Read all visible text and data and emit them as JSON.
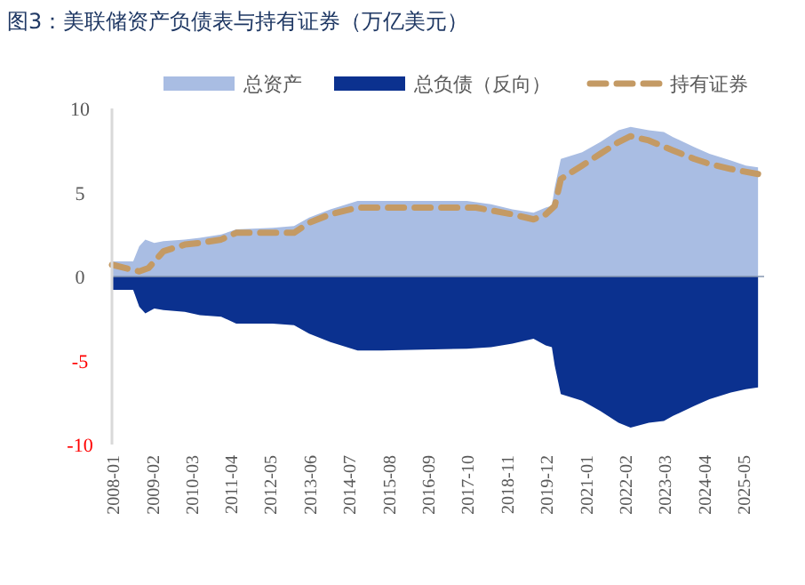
{
  "chart_data": {
    "type": "area",
    "title": "图3：美联储资产负债表与持有证券（万亿美元）",
    "xlim": [
      "2008-01",
      "2025-12"
    ],
    "xticks": [
      "2008-01",
      "2009-02",
      "2010-03",
      "2011-04",
      "2012-05",
      "2013-06",
      "2014-07",
      "2015-08",
      "2016-09",
      "2017-10",
      "2018-11",
      "2019-12",
      "2021-01",
      "2022-02",
      "2023-03",
      "2024-04",
      "2025-05"
    ],
    "ref_lines": [
      {
        "axis": "y",
        "value": 0,
        "color": "#8496b0"
      }
    ],
    "ylim": [
      -10,
      10
    ],
    "yticks": [
      -10,
      -5,
      0,
      5,
      10
    ],
    "grid": false,
    "legend": "top",
    "series": [
      {
        "name": "总资产",
        "color": "#a9bde3",
        "x": [
          "2008-01",
          "2008-08",
          "2008-10",
          "2008-12",
          "2009-03",
          "2009-06",
          "2010-01",
          "2010-06",
          "2011-01",
          "2011-06",
          "2012-06",
          "2013-01",
          "2013-06",
          "2014-01",
          "2014-10",
          "2015-06",
          "2017-10",
          "2018-06",
          "2019-01",
          "2019-08",
          "2019-12",
          "2020-02",
          "2020-03",
          "2020-05",
          "2020-12",
          "2021-06",
          "2021-12",
          "2022-04",
          "2022-10",
          "2023-03",
          "2023-06",
          "2024-01",
          "2024-06",
          "2025-01",
          "2025-06",
          "2025-10"
        ],
        "values": [
          0.9,
          0.9,
          1.8,
          2.2,
          2.0,
          2.1,
          2.2,
          2.3,
          2.5,
          2.8,
          2.9,
          3.0,
          3.5,
          4.0,
          4.5,
          4.5,
          4.5,
          4.3,
          4.0,
          3.8,
          4.1,
          4.2,
          5.3,
          7.0,
          7.4,
          8.0,
          8.7,
          8.9,
          8.7,
          8.6,
          8.3,
          7.7,
          7.3,
          6.9,
          6.6,
          6.5
        ]
      },
      {
        "name": "总负债（反向）",
        "color": "#0b318f",
        "x": [
          "2008-01",
          "2008-08",
          "2008-10",
          "2008-12",
          "2009-03",
          "2009-06",
          "2010-01",
          "2010-06",
          "2011-01",
          "2011-06",
          "2012-06",
          "2013-01",
          "2013-06",
          "2014-01",
          "2014-10",
          "2015-06",
          "2017-10",
          "2018-06",
          "2019-01",
          "2019-08",
          "2019-12",
          "2020-02",
          "2020-03",
          "2020-05",
          "2020-12",
          "2021-06",
          "2021-12",
          "2022-04",
          "2022-10",
          "2023-03",
          "2023-06",
          "2024-01",
          "2024-06",
          "2025-01",
          "2025-06",
          "2025-10"
        ],
        "values": [
          -0.8,
          -0.8,
          -1.8,
          -2.2,
          -1.9,
          -2.0,
          -2.1,
          -2.3,
          -2.4,
          -2.8,
          -2.8,
          -2.9,
          -3.4,
          -3.9,
          -4.4,
          -4.4,
          -4.3,
          -4.2,
          -4.0,
          -3.7,
          -4.1,
          -4.2,
          -5.3,
          -7.0,
          -7.4,
          -8.0,
          -8.7,
          -9.0,
          -8.7,
          -8.6,
          -8.3,
          -7.7,
          -7.3,
          -6.9,
          -6.7,
          -6.6
        ]
      },
      {
        "name": "持有证券",
        "type": "line",
        "line_style": "dashed",
        "color": "#c49a64",
        "x": [
          "2008-01",
          "2008-10",
          "2009-01",
          "2009-06",
          "2010-01",
          "2010-06",
          "2011-01",
          "2011-06",
          "2012-06",
          "2013-01",
          "2013-06",
          "2014-01",
          "2014-10",
          "2018-01",
          "2019-01",
          "2019-08",
          "2019-12",
          "2020-03",
          "2020-05",
          "2020-12",
          "2021-06",
          "2021-12",
          "2022-04",
          "2022-10",
          "2023-06",
          "2024-01",
          "2024-06",
          "2025-01",
          "2025-10"
        ],
        "values": [
          0.7,
          0.3,
          0.5,
          1.5,
          1.9,
          2.0,
          2.2,
          2.6,
          2.6,
          2.6,
          3.2,
          3.7,
          4.1,
          4.1,
          3.7,
          3.4,
          3.7,
          4.2,
          5.8,
          6.6,
          7.3,
          8.0,
          8.35,
          8.1,
          7.5,
          7.0,
          6.7,
          6.4,
          6.1
        ]
      }
    ]
  }
}
